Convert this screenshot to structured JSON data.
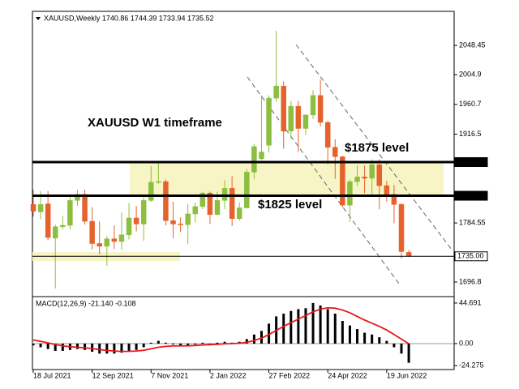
{
  "chart_data": [
    {
      "type": "candlestick",
      "title": "XAUUSD,Weekly  1740.86 1744.39 1733.94 1735.52",
      "annotations": [
        "XAUUSD W1 timeframe",
        "$1875 level",
        "$1825 level"
      ],
      "categories": [
        "18 Jul 2021",
        null,
        null,
        null,
        null,
        null,
        null,
        null,
        "12 Sep 2021",
        null,
        null,
        null,
        null,
        null,
        null,
        null,
        "7 Nov 2021",
        null,
        null,
        null,
        null,
        null,
        null,
        null,
        "2 Jan 2022",
        null,
        null,
        null,
        null,
        null,
        null,
        null,
        "27 Feb 2022",
        null,
        null,
        null,
        null,
        null,
        null,
        null,
        "24 Apr 2022",
        null,
        null,
        null,
        null,
        null,
        null,
        null,
        "19 Jun 2022",
        null,
        null,
        null
      ],
      "open": [
        1812,
        1801,
        1813,
        1762,
        1779,
        1781,
        1818,
        1827,
        1787,
        1754,
        1750,
        1761,
        1757,
        1767,
        1792,
        1783,
        1818,
        1846,
        1846,
        1788,
        1783,
        1782,
        1798,
        1809,
        1829,
        1797,
        1818,
        1836,
        1791,
        1807,
        1860,
        1880,
        1900,
        1970,
        1988,
        1921,
        1958,
        1925,
        1945,
        1974,
        1934,
        1897,
        1883,
        1811,
        1846,
        1853,
        1851,
        1871,
        1840,
        1827,
        1812,
        1740.86
      ],
      "high": [
        1834,
        1832,
        1832,
        1782,
        1795,
        1823,
        1834,
        1834,
        1808,
        1787,
        1765,
        1781,
        1800,
        1814,
        1810,
        1823,
        1869,
        1877,
        1849,
        1816,
        1793,
        1813,
        1815,
        1831,
        1831,
        1831,
        1848,
        1854,
        1815,
        1865,
        1902,
        1974,
        1974,
        2070,
        1995,
        1966,
        1966,
        1946,
        1982,
        1998,
        1936,
        1909,
        1884,
        1849,
        1870,
        1870,
        1879,
        1879,
        1847,
        1841,
        1814,
        1744.39
      ],
      "low": [
        1794,
        1790,
        1759,
        1687,
        1775,
        1775,
        1810,
        1782,
        1745,
        1738,
        1721,
        1746,
        1745,
        1760,
        1772,
        1758,
        1816,
        1843,
        1781,
        1762,
        1771,
        1753,
        1785,
        1805,
        1783,
        1796,
        1805,
        1780,
        1788,
        1806,
        1850,
        1878,
        1889,
        1965,
        1895,
        1910,
        1890,
        1915,
        1939,
        1928,
        1872,
        1850,
        1808,
        1786,
        1840,
        1829,
        1825,
        1805,
        1816,
        1784,
        1732,
        1733.94
      ],
      "close": [
        1802,
        1812,
        1763,
        1779,
        1781,
        1818,
        1827,
        1787,
        1754,
        1750,
        1761,
        1757,
        1767,
        1792,
        1783,
        1818,
        1845,
        1846,
        1788,
        1783,
        1782,
        1798,
        1809,
        1829,
        1797,
        1818,
        1836,
        1791,
        1807,
        1860,
        1898,
        1890,
        1970,
        1988,
        1921,
        1958,
        1925,
        1945,
        1974,
        1934,
        1897,
        1883,
        1811,
        1846,
        1853,
        1851,
        1871,
        1840,
        1827,
        1812,
        1742,
        1735.52
      ],
      "up_color": "#8cbf3f",
      "down_color": "#e5622c",
      "levels": [
        {
          "value": 1875,
          "label": "1875.00"
        },
        {
          "value": 1825,
          "label": "1825.00"
        },
        {
          "value": 1735,
          "label": "1735.00"
        }
      ],
      "ylim": [
        1676.3,
        2094.2
      ],
      "yticks": [
        2048.45,
        2004.9,
        1960.7,
        1916.5,
        1784.55,
        1696.8
      ]
    },
    {
      "type": "macd",
      "title": "MACD(12,26,9) -21.140 -0.108",
      "histogram": {
        "color": "#000000",
        "values": [
          -2,
          -4,
          -6,
          -8,
          -8,
          -7,
          -6,
          -7,
          -9,
          -11,
          -11,
          -11,
          -10,
          -8,
          -7,
          -4,
          1,
          3,
          1,
          -1,
          -2,
          -2,
          -1,
          1,
          0,
          1,
          2,
          1,
          2,
          5,
          10,
          14,
          22,
          30,
          33,
          36,
          38,
          39,
          44.691,
          42,
          38,
          33,
          25,
          20,
          16,
          12,
          10,
          7,
          3,
          -4,
          -11,
          -21.14
        ]
      },
      "signal": {
        "color": "#e8161b",
        "values": [
          4,
          2.5,
          0.8,
          -1,
          -2.5,
          -3.5,
          -4,
          -4.6,
          -5.5,
          -6.6,
          -7.5,
          -8.2,
          -8.6,
          -8.5,
          -8.2,
          -7.4,
          -5.7,
          -4,
          -3,
          -2.6,
          -2.5,
          -2.4,
          -2.1,
          -1.5,
          -1.2,
          -0.8,
          -0.2,
          0,
          0.4,
          1.3,
          3.5,
          6,
          10,
          14.5,
          19,
          23,
          27,
          31,
          35,
          38,
          39.5,
          39,
          37,
          34,
          30,
          26,
          22.5,
          19,
          15,
          10,
          5,
          -0.108
        ]
      },
      "ylim": [
        -28.6,
        50
      ],
      "yticks": [
        44.691,
        {
          "value": 0,
          "label": "0.00"
        },
        -24.275
      ]
    }
  ]
}
